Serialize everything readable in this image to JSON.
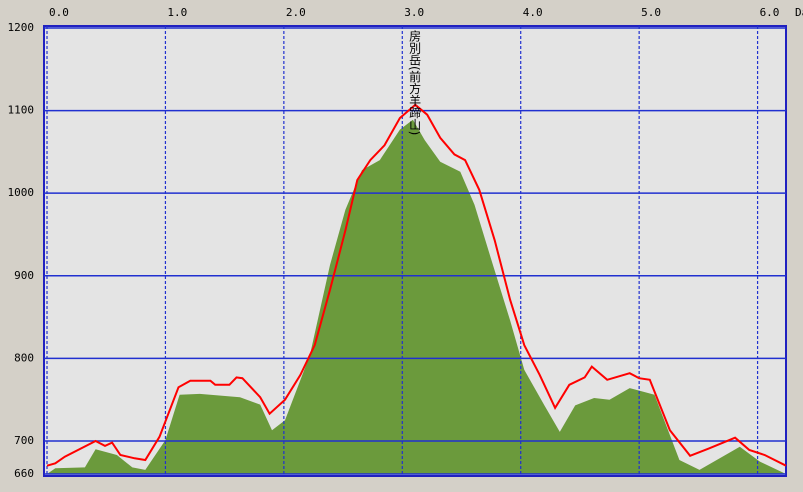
{
  "chart_data": {
    "type": "area",
    "x_label": "Da",
    "annotation": {
      "text": "房別岳(前方羊蹄山)",
      "x": 3.1
    },
    "xlim": [
      0,
      6.24
    ],
    "ylim": [
      660,
      1200
    ],
    "xticks": [
      {
        "value": 0,
        "label": "0.0"
      },
      {
        "value": 1,
        "label": "1.0"
      },
      {
        "value": 2,
        "label": "2.0"
      },
      {
        "value": 3,
        "label": "3.0"
      },
      {
        "value": 4,
        "label": "4.0"
      },
      {
        "value": 5,
        "label": "5.0"
      },
      {
        "value": 6,
        "label": "6.0"
      }
    ],
    "yticks": [
      660,
      700,
      800,
      900,
      1000,
      1100,
      1200
    ],
    "grid": true,
    "series": [
      {
        "kind": "area",
        "color": "#6b9a3c",
        "x": [
          0,
          0.07,
          0.32,
          0.41,
          0.59,
          0.72,
          0.83,
          1.0,
          1.12,
          1.29,
          1.63,
          1.8,
          1.9,
          2.01,
          2.22,
          2.39,
          2.52,
          2.66,
          2.81,
          2.98,
          3.09,
          3.19,
          3.32,
          3.49,
          3.61,
          3.74,
          3.91,
          4.03,
          4.2,
          4.33,
          4.46,
          4.62,
          4.75,
          4.92,
          5.13,
          5.34,
          5.51,
          5.85,
          6.02,
          6.24
        ],
        "values": [
          660,
          667,
          668,
          690,
          683,
          668,
          665,
          701,
          756,
          757,
          753,
          744,
          713,
          725,
          804,
          913,
          980,
          1028,
          1040,
          1077,
          1089,
          1064,
          1038,
          1026,
          986,
          925,
          846,
          786,
          743,
          711,
          743,
          752,
          750,
          764,
          756,
          677,
          665,
          693,
          675,
          660
        ]
      },
      {
        "kind": "line",
        "color": "#ff0000",
        "x": [
          0,
          0.07,
          0.15,
          0.41,
          0.49,
          0.55,
          0.62,
          0.74,
          0.83,
          0.95,
          1.11,
          1.21,
          1.38,
          1.42,
          1.54,
          1.6,
          1.65,
          1.8,
          1.88,
          2.01,
          2.14,
          2.26,
          2.39,
          2.52,
          2.62,
          2.73,
          2.85,
          2.98,
          3.11,
          3.21,
          3.32,
          3.44,
          3.53,
          3.65,
          3.78,
          3.91,
          4.03,
          4.16,
          4.29,
          4.41,
          4.54,
          4.6,
          4.73,
          4.92,
          5.0,
          5.09,
          5.26,
          5.43,
          5.59,
          5.81,
          5.93,
          6.06,
          6.24
        ],
        "values": [
          670,
          673,
          681,
          700,
          694,
          698,
          683,
          679,
          677,
          705,
          765,
          773,
          773,
          768,
          768,
          777,
          776,
          753,
          733,
          750,
          780,
          816,
          883,
          955,
          1016,
          1040,
          1058,
          1091,
          1107,
          1095,
          1067,
          1047,
          1040,
          1004,
          943,
          871,
          816,
          780,
          740,
          768,
          777,
          790,
          774,
          782,
          776,
          774,
          713,
          682,
          691,
          704,
          689,
          683,
          670
        ]
      }
    ]
  }
}
